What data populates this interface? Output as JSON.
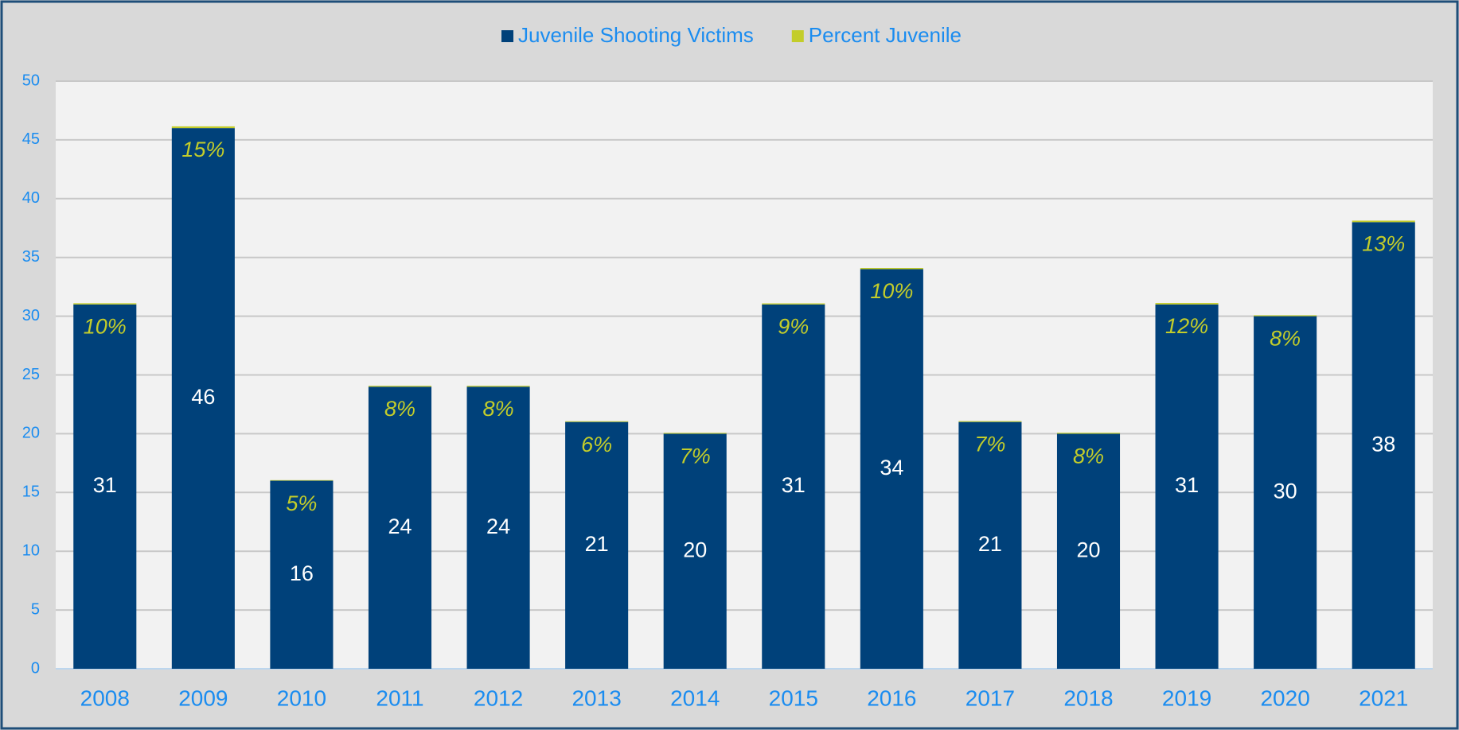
{
  "chart_data": {
    "type": "stacked-bar",
    "categories": [
      "2008",
      "2009",
      "2010",
      "2011",
      "2012",
      "2013",
      "2014",
      "2015",
      "2016",
      "2017",
      "2018",
      "2019",
      "2020",
      "2021"
    ],
    "series": [
      {
        "name": "Juvenile Shooting Victims",
        "color": "#00417a",
        "values": [
          31,
          46,
          16,
          24,
          24,
          21,
          20,
          31,
          34,
          21,
          20,
          31,
          30,
          38
        ]
      },
      {
        "name": "Percent Juvenile",
        "color": "#c3cd2a",
        "values": [
          0.1,
          0.15,
          0.05,
          0.08,
          0.08,
          0.06,
          0.07,
          0.09,
          0.1,
          0.07,
          0.08,
          0.12,
          0.08,
          0.13
        ],
        "value_labels": [
          "10%",
          "15%",
          "5%",
          "8%",
          "8%",
          "6%",
          "7%",
          "9%",
          "10%",
          "7%",
          "8%",
          "12%",
          "8%",
          "13%"
        ]
      }
    ],
    "ylim": [
      0,
      50
    ],
    "yticks": [
      0,
      5,
      10,
      15,
      20,
      25,
      30,
      35,
      40,
      45,
      50
    ],
    "grid": true,
    "legend": "top"
  }
}
